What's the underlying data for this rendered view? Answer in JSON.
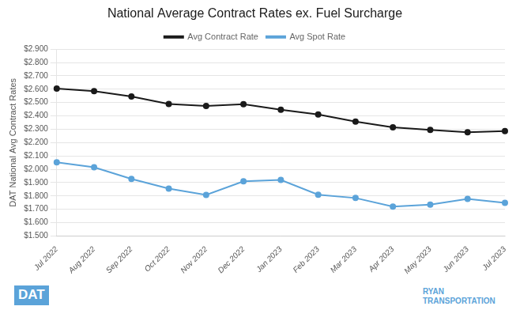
{
  "chart_data": {
    "type": "line",
    "title": "National Average Contract Rates ex. Fuel Surcharge",
    "y_label": "DAT National Avg Contract Rates",
    "categories": [
      "Jul 2022",
      "Aug 2022",
      "Sep 2022",
      "Oct 2022",
      "Nov 2022",
      "Dec 2022",
      "Jan 2023",
      "Feb 2023",
      "Mar 2023",
      "Apr 2023",
      "May 2023",
      "Jun 2023",
      "Jul 2023"
    ],
    "series": [
      {
        "name": "Avg Contract Rate",
        "color": "#1a1a1a",
        "marker": "circle",
        "line_style": "solid",
        "values": [
          2.605,
          2.585,
          2.545,
          2.49,
          2.475,
          2.488,
          2.447,
          2.411,
          2.358,
          2.315,
          2.295,
          2.278,
          2.286
        ]
      },
      {
        "name": "Avg Spot Rate",
        "color": "#5ba3d9",
        "marker": "circle",
        "line_style": "solid",
        "values": [
          2.052,
          2.015,
          1.928,
          1.855,
          1.808,
          1.91,
          1.92,
          1.81,
          1.785,
          1.72,
          1.735,
          1.778,
          1.748
        ]
      }
    ],
    "ylim": [
      1.5,
      2.9
    ],
    "yticks": [
      {
        "value": 1.5,
        "label": "$1.500"
      },
      {
        "value": 1.6,
        "label": "$1.600"
      },
      {
        "value": 1.7,
        "label": "$1.700"
      },
      {
        "value": 1.8,
        "label": "$1.800"
      },
      {
        "value": 1.9,
        "label": "$1.900"
      },
      {
        "value": 2.0,
        "label": "$2.000"
      },
      {
        "value": 2.1,
        "label": "$2.100"
      },
      {
        "value": 2.2,
        "label": "$2.200"
      },
      {
        "value": 2.3,
        "label": "$2.300"
      },
      {
        "value": 2.4,
        "label": "$2.400"
      },
      {
        "value": 2.5,
        "label": "$2.500"
      },
      {
        "value": 2.6,
        "label": "$2.600"
      },
      {
        "value": 2.7,
        "label": "$2.700"
      },
      {
        "value": 2.8,
        "label": "$2.800"
      },
      {
        "value": 2.9,
        "label": "$2.900"
      }
    ],
    "grid": "y",
    "legend": "top",
    "annotations": [
      "DAT",
      "RYAN\nTRANSPORTATION"
    ]
  }
}
